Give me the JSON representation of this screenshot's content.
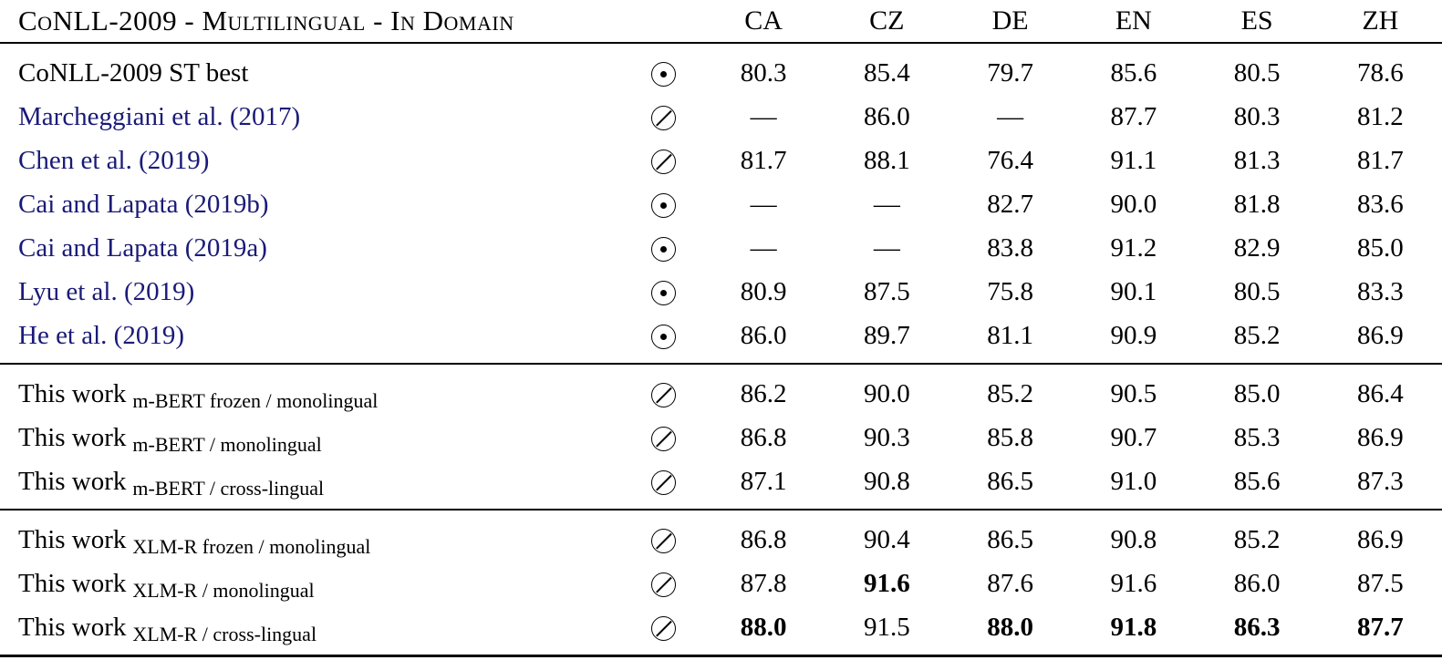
{
  "header": {
    "title": "CoNLL-2009 - Multilingual - In Domain",
    "columns": [
      "CA",
      "CZ",
      "DE",
      "EN",
      "ES",
      "ZH"
    ]
  },
  "colors": {
    "citation_link": "#1a1a78",
    "text": "#000000",
    "background": "#ffffff"
  },
  "icons": {
    "dot": "circled-dot-icon",
    "slash": "circled-slash-icon"
  },
  "sections": [
    {
      "rows": [
        {
          "label": "CoNLL-2009 ST best",
          "link": false,
          "marker": "dot",
          "values": [
            "80.3",
            "85.4",
            "79.7",
            "85.6",
            "80.5",
            "78.6"
          ],
          "bold": [
            false,
            false,
            false,
            false,
            false,
            false
          ]
        },
        {
          "label": "Marcheggiani et al. (2017)",
          "link": true,
          "marker": "slash",
          "values": [
            "—",
            "86.0",
            "—",
            "87.7",
            "80.3",
            "81.2"
          ],
          "bold": [
            false,
            false,
            false,
            false,
            false,
            false
          ]
        },
        {
          "label": "Chen et al. (2019)",
          "link": true,
          "marker": "slash",
          "values": [
            "81.7",
            "88.1",
            "76.4",
            "91.1",
            "81.3",
            "81.7"
          ],
          "bold": [
            false,
            false,
            false,
            false,
            false,
            false
          ]
        },
        {
          "label": "Cai and Lapata (2019b)",
          "link": true,
          "marker": "dot",
          "values": [
            "—",
            "—",
            "82.7",
            "90.0",
            "81.8",
            "83.6"
          ],
          "bold": [
            false,
            false,
            false,
            false,
            false,
            false
          ]
        },
        {
          "label": "Cai and Lapata (2019a)",
          "link": true,
          "marker": "dot",
          "values": [
            "—",
            "—",
            "83.8",
            "91.2",
            "82.9",
            "85.0"
          ],
          "bold": [
            false,
            false,
            false,
            false,
            false,
            false
          ]
        },
        {
          "label": "Lyu et al. (2019)",
          "link": true,
          "marker": "dot",
          "values": [
            "80.9",
            "87.5",
            "75.8",
            "90.1",
            "80.5",
            "83.3"
          ],
          "bold": [
            false,
            false,
            false,
            false,
            false,
            false
          ]
        },
        {
          "label": "He et al. (2019)",
          "link": true,
          "marker": "dot",
          "values": [
            "86.0",
            "89.7",
            "81.1",
            "90.9",
            "85.2",
            "86.9"
          ],
          "bold": [
            false,
            false,
            false,
            false,
            false,
            false
          ]
        }
      ]
    },
    {
      "rows": [
        {
          "label": "This work",
          "sub": "m-BERT frozen / monolingual",
          "link": false,
          "marker": "slash",
          "values": [
            "86.2",
            "90.0",
            "85.2",
            "90.5",
            "85.0",
            "86.4"
          ],
          "bold": [
            false,
            false,
            false,
            false,
            false,
            false
          ]
        },
        {
          "label": "This work",
          "sub": "m-BERT / monolingual",
          "link": false,
          "marker": "slash",
          "values": [
            "86.8",
            "90.3",
            "85.8",
            "90.7",
            "85.3",
            "86.9"
          ],
          "bold": [
            false,
            false,
            false,
            false,
            false,
            false
          ]
        },
        {
          "label": "This work",
          "sub": "m-BERT / cross-lingual",
          "link": false,
          "marker": "slash",
          "values": [
            "87.1",
            "90.8",
            "86.5",
            "91.0",
            "85.6",
            "87.3"
          ],
          "bold": [
            false,
            false,
            false,
            false,
            false,
            false
          ]
        }
      ]
    },
    {
      "rows": [
        {
          "label": "This work",
          "sub": "XLM-R frozen / monolingual",
          "link": false,
          "marker": "slash",
          "values": [
            "86.8",
            "90.4",
            "86.5",
            "90.8",
            "85.2",
            "86.9"
          ],
          "bold": [
            false,
            false,
            false,
            false,
            false,
            false
          ]
        },
        {
          "label": "This work",
          "sub": "XLM-R / monolingual",
          "link": false,
          "marker": "slash",
          "values": [
            "87.8",
            "91.6",
            "87.6",
            "91.6",
            "86.0",
            "87.5"
          ],
          "bold": [
            false,
            true,
            false,
            false,
            false,
            false
          ]
        },
        {
          "label": "This work",
          "sub": "XLM-R / cross-lingual",
          "link": false,
          "marker": "slash",
          "values": [
            "88.0",
            "91.5",
            "88.0",
            "91.8",
            "86.3",
            "87.7"
          ],
          "bold": [
            true,
            false,
            true,
            true,
            true,
            true
          ]
        }
      ]
    }
  ]
}
